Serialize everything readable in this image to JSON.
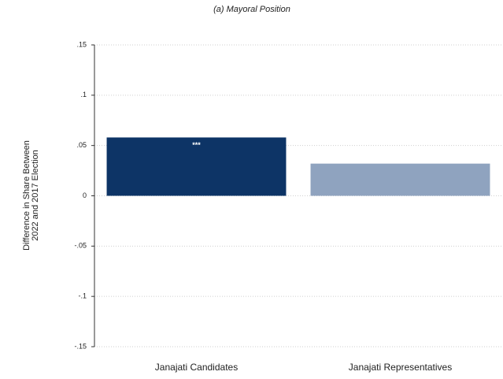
{
  "chart_data": {
    "type": "bar",
    "title": "(a) Mayoral Position",
    "ylabel": [
      "Difference in Share Between",
      "2022 and 2017 Election"
    ],
    "categories": [
      "Janajati Candidates",
      "Janajati Representatives"
    ],
    "values": [
      0.058,
      0.032
    ],
    "colors": [
      "#0d3466",
      "#8fa3bf"
    ],
    "significance": [
      "***",
      null
    ],
    "ylim": [
      -0.15,
      0.15
    ],
    "yticks": [
      {
        "value": 0.15,
        "label": ".15"
      },
      {
        "value": 0.1,
        "label": ".1"
      },
      {
        "value": 0.05,
        "label": ".05"
      },
      0,
      {
        "value": -0.05,
        "label": "-.05"
      },
      {
        "value": -0.1,
        "label": "-.1"
      },
      {
        "value": -0.15,
        "label": "-.15"
      }
    ],
    "grid": true
  }
}
